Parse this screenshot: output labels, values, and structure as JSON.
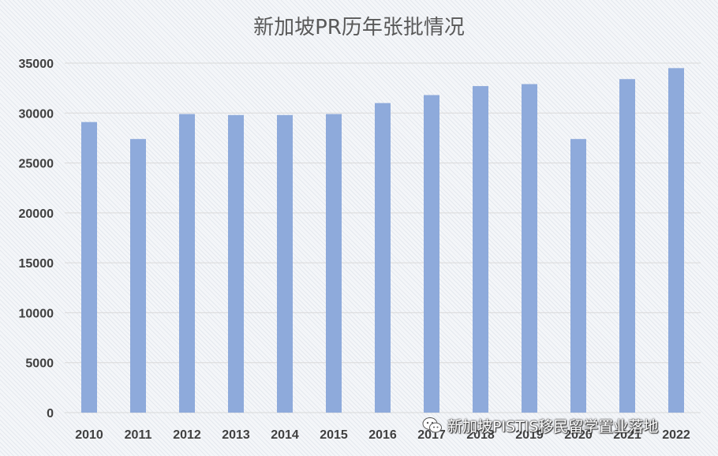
{
  "chart_data": {
    "type": "bar",
    "title": "新加坡PR历年张批情况",
    "categories": [
      "2010",
      "2011",
      "2012",
      "2013",
      "2014",
      "2015",
      "2016",
      "2017",
      "2018",
      "2019",
      "2020",
      "2021",
      "2022"
    ],
    "values": [
      29100,
      27400,
      29900,
      29800,
      29800,
      29900,
      31000,
      31800,
      32700,
      32900,
      27400,
      33400,
      34500
    ],
    "ylim": [
      0,
      35000
    ],
    "yticks": [
      0,
      5000,
      10000,
      15000,
      20000,
      25000,
      30000,
      35000
    ],
    "grid": true,
    "bar_color": "#8eaadb"
  },
  "watermark": {
    "text": "新加坡PISTIS移民留学置业落地",
    "icon": "wechat-icon"
  }
}
